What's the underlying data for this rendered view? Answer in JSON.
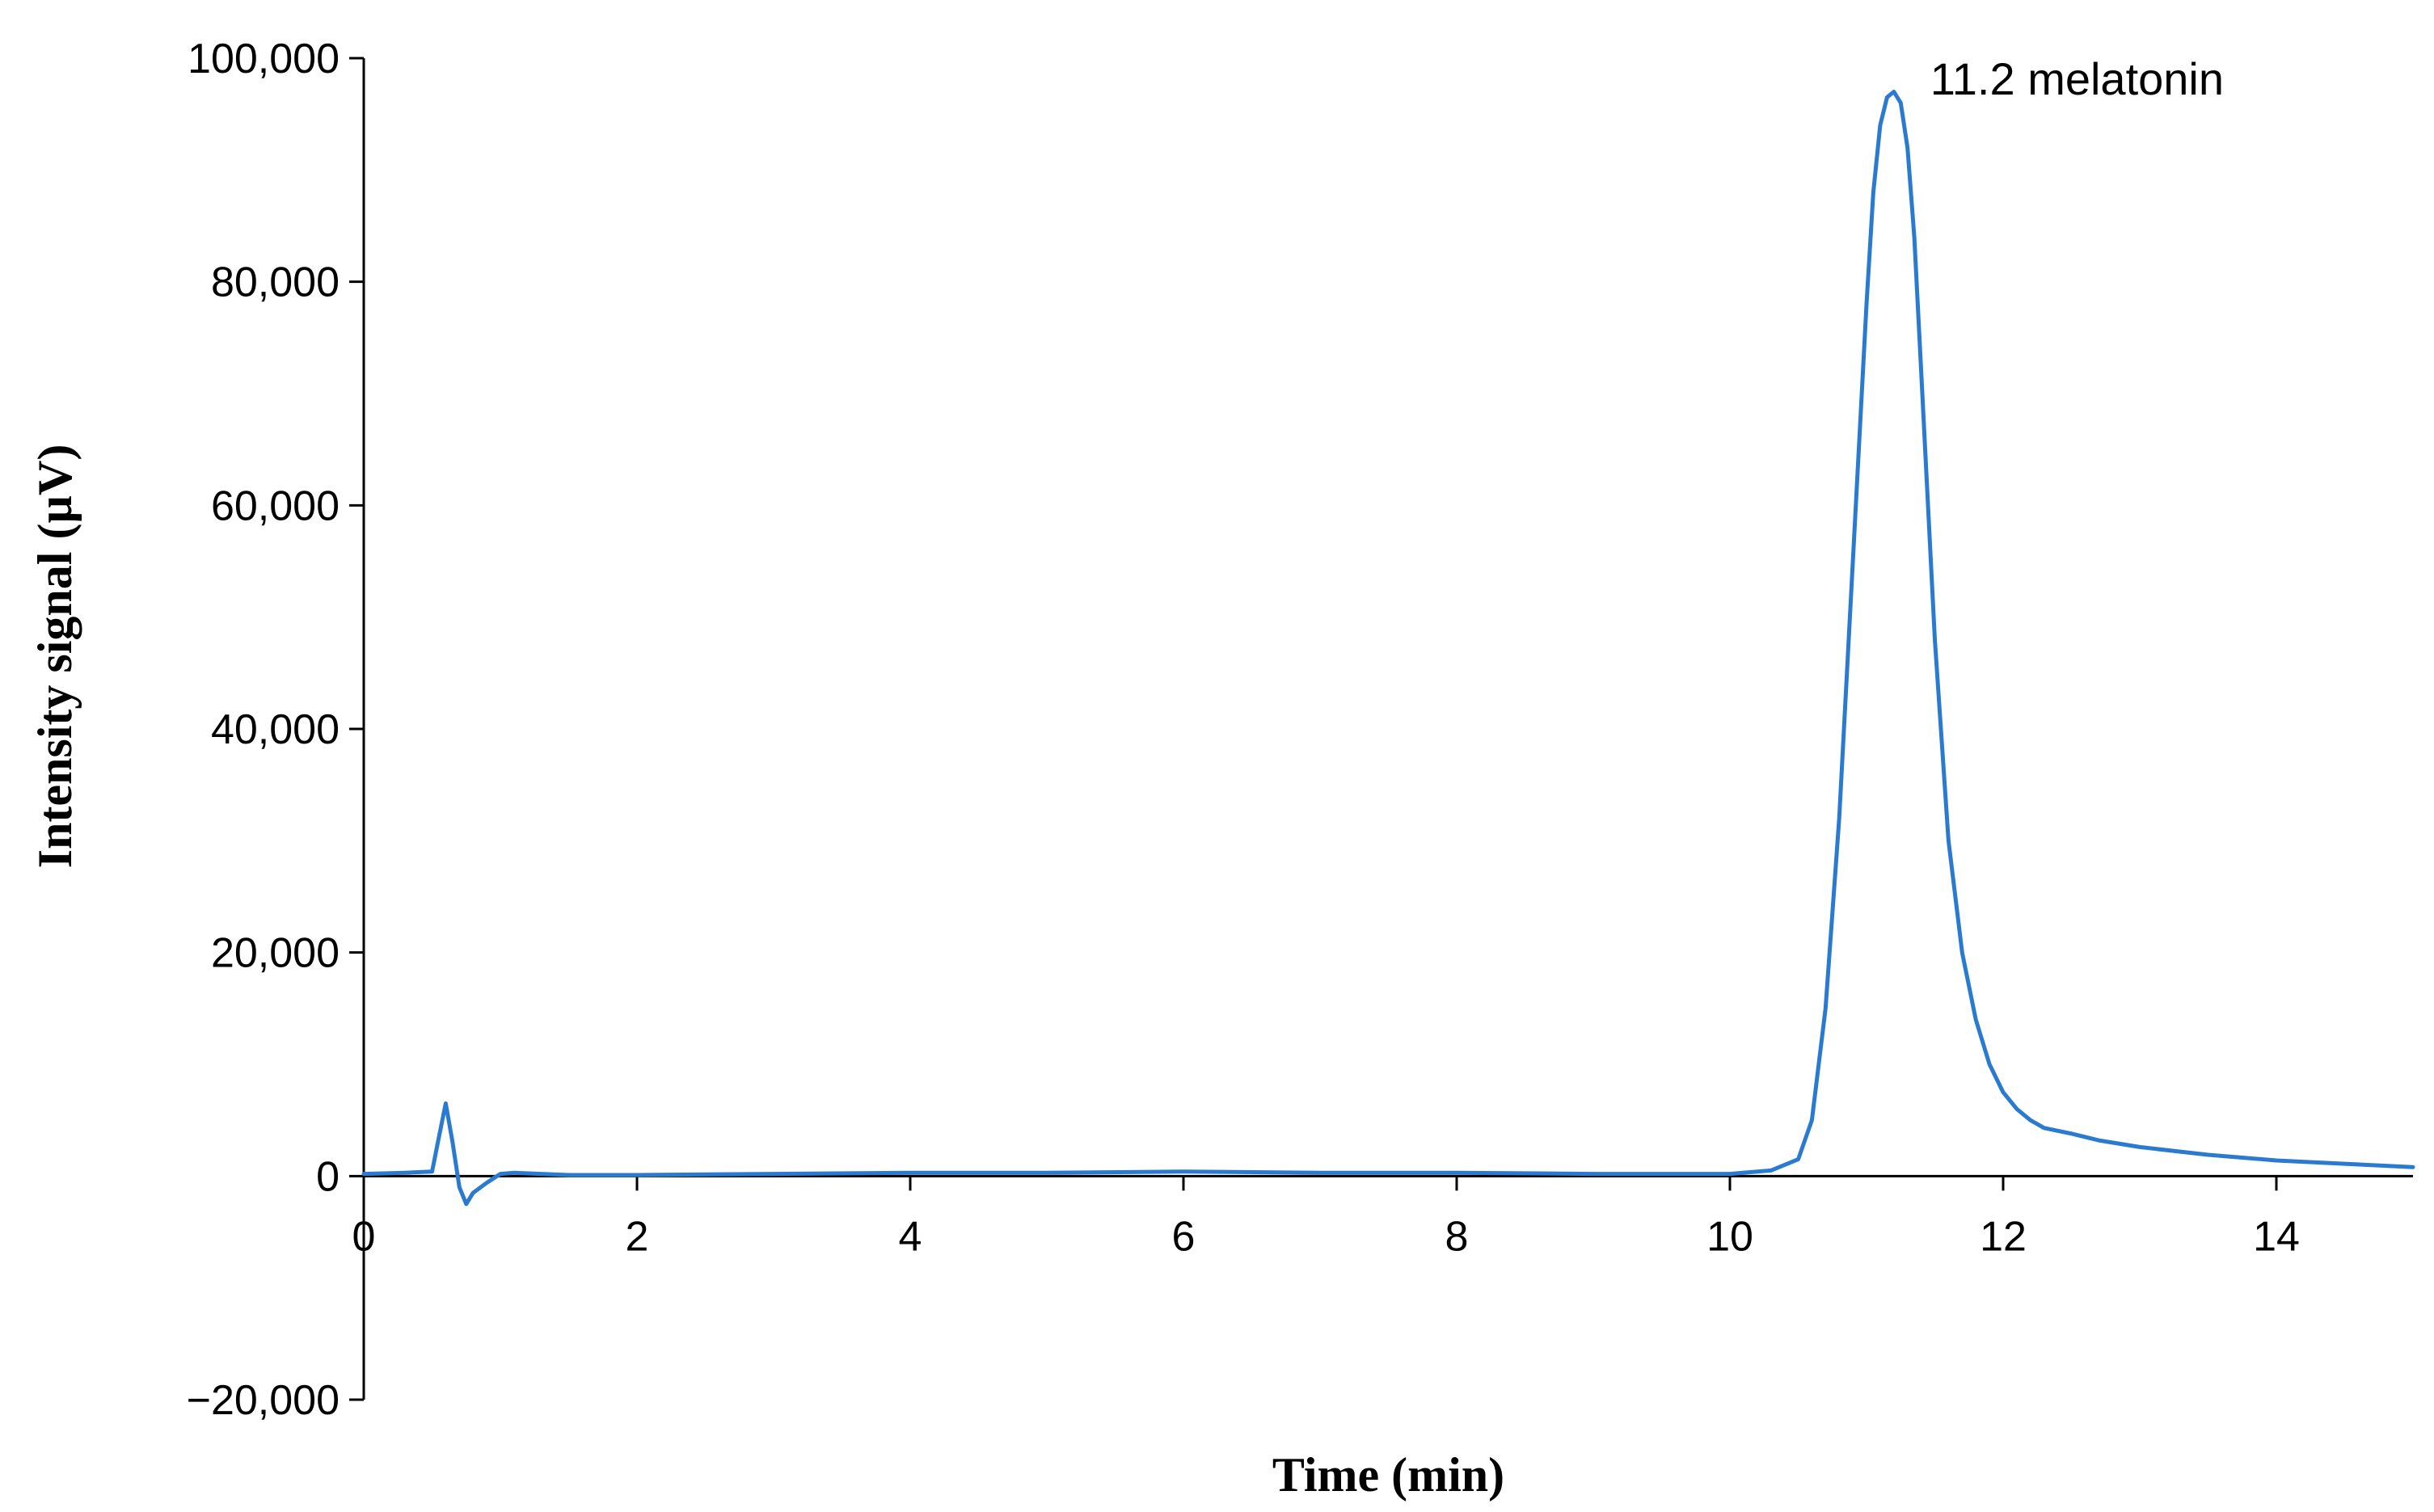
{
  "chart_data": {
    "type": "line",
    "title": "",
    "xlabel": "Time (min)",
    "ylabel": "Intensity signal (µV)",
    "xlim": [
      0,
      15
    ],
    "ylim": [
      -20000,
      100000
    ],
    "x_ticks": [
      0,
      2,
      4,
      6,
      8,
      10,
      12,
      14
    ],
    "x_tick_labels": [
      "0",
      "2",
      "4",
      "6",
      "8",
      "10",
      "12",
      "14"
    ],
    "y_ticks": [
      -20000,
      0,
      20000,
      40000,
      60000,
      80000,
      100000
    ],
    "y_tick_labels": [
      "−20,000",
      "0",
      "20,000",
      "40,000",
      "60,000",
      "80,000",
      "100,000"
    ],
    "grid": false,
    "legend": "none",
    "line_color": "#2a7bd0",
    "annotations": [
      {
        "text": "11.2 melatonin",
        "x": 11.2,
        "y": 97000
      }
    ],
    "series": [
      {
        "x": [
          0,
          0.3,
          0.5,
          0.55,
          0.6,
          0.65,
          0.7,
          0.75,
          0.8,
          0.9,
          1.0,
          1.1,
          1.5,
          2,
          3,
          4,
          5,
          6,
          7,
          8,
          9,
          10,
          10.3,
          10.5,
          10.6,
          10.7,
          10.8,
          10.9,
          11.0,
          11.05,
          11.1,
          11.15,
          11.2,
          11.25,
          11.3,
          11.35,
          11.4,
          11.5,
          11.6,
          11.7,
          11.8,
          11.9,
          12.0,
          12.1,
          12.2,
          12.3,
          12.5,
          12.7,
          13.0,
          13.5,
          14.0,
          14.5,
          15.0
        ],
        "y": [
          200,
          300,
          400,
          3500,
          6500,
          3000,
          -1000,
          -2500,
          -1500,
          -600,
          200,
          300,
          100,
          100,
          200,
          300,
          300,
          400,
          300,
          300,
          200,
          200,
          500,
          1500,
          5000,
          15000,
          32000,
          55000,
          78000,
          88000,
          94000,
          96500,
          97000,
          96000,
          92000,
          84000,
          72000,
          48000,
          30000,
          20000,
          14000,
          10000,
          7500,
          6000,
          5000,
          4300,
          3800,
          3200,
          2600,
          1900,
          1400,
          1100,
          800
        ]
      }
    ]
  }
}
